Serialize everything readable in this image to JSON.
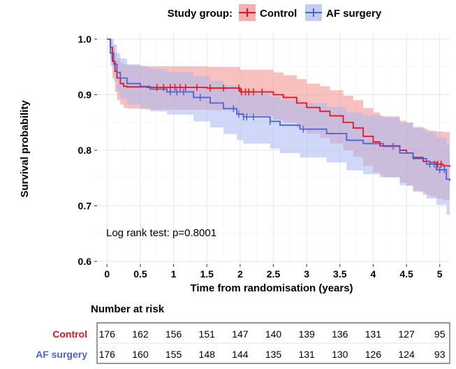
{
  "chart_data": {
    "type": "line",
    "legend": {
      "title": "Study group:",
      "position": "top",
      "entries": [
        {
          "name": "Control",
          "color": "#e8141e"
        },
        {
          "name": "AF surgery",
          "color": "#4d62d6"
        }
      ]
    },
    "xlabel": "Time from randomisation (years)",
    "ylabel": "Survival probability",
    "xlim": [
      -0.15,
      5.15
    ],
    "ylim": [
      0.595,
      1.01
    ],
    "x_ticks": [
      0,
      0.5,
      1,
      1.5,
      2,
      2.5,
      3,
      3.5,
      4,
      4.5,
      5
    ],
    "x_tick_labels": [
      "0",
      "0.5",
      "1",
      "1.5",
      "2",
      "2.5",
      "3",
      "3.5",
      "4",
      "4.5",
      "5"
    ],
    "y_ticks": [
      0.6,
      0.7,
      0.8,
      0.9,
      1.0
    ],
    "y_tick_labels": [
      "0.6",
      "0.7",
      "0.8",
      "0.9",
      "1.0"
    ],
    "grid": true,
    "annotation": "Log rank test: p=0.8001",
    "series": [
      {
        "name": "Control",
        "color": "#e8141e",
        "band_color": "#f48c8c",
        "step_x": [
          0,
          0.05,
          0.08,
          0.12,
          0.15,
          0.2,
          0.25,
          0.3,
          0.5,
          0.6,
          1.0,
          1.5,
          2.0,
          2.5,
          2.65,
          2.85,
          3.0,
          3.2,
          3.35,
          3.55,
          3.7,
          3.85,
          4.0,
          4.1,
          4.4,
          4.5,
          4.6,
          4.75,
          4.85,
          4.95,
          5.05,
          5.15
        ],
        "step_y": [
          1.0,
          0.985,
          0.96,
          0.942,
          0.93,
          0.92,
          0.915,
          0.914,
          0.914,
          0.913,
          0.913,
          0.912,
          0.905,
          0.9,
          0.895,
          0.885,
          0.877,
          0.87,
          0.862,
          0.85,
          0.84,
          0.825,
          0.815,
          0.808,
          0.8,
          0.795,
          0.787,
          0.78,
          0.778,
          0.775,
          0.772,
          0.77
        ],
        "band_upper": [
          1.0,
          1.0,
          0.99,
          0.975,
          0.965,
          0.958,
          0.955,
          0.953,
          0.952,
          0.951,
          0.951,
          0.95,
          0.945,
          0.94,
          0.935,
          0.928,
          0.92,
          0.915,
          0.908,
          0.898,
          0.89,
          0.876,
          0.868,
          0.861,
          0.853,
          0.85,
          0.842,
          0.837,
          0.835,
          0.834,
          0.833,
          0.832
        ],
        "band_lower": [
          1.0,
          0.965,
          0.93,
          0.905,
          0.89,
          0.882,
          0.876,
          0.875,
          0.874,
          0.873,
          0.873,
          0.872,
          0.862,
          0.855,
          0.85,
          0.84,
          0.83,
          0.822,
          0.812,
          0.8,
          0.788,
          0.772,
          0.76,
          0.752,
          0.742,
          0.736,
          0.727,
          0.72,
          0.717,
          0.713,
          0.71,
          0.707
        ],
        "censor_x": [
          0.75,
          0.85,
          0.95,
          1.02,
          1.1,
          1.18,
          1.35,
          1.55,
          1.75,
          1.98,
          2.02,
          2.08,
          2.13,
          2.2,
          2.33,
          4.97,
          5.02
        ]
      },
      {
        "name": "AF surgery",
        "color": "#4d62d6",
        "band_color": "#a8b8f0",
        "step_x": [
          0,
          0.05,
          0.1,
          0.15,
          0.2,
          0.3,
          0.5,
          0.65,
          0.9,
          1.3,
          1.55,
          1.75,
          1.95,
          2.05,
          2.45,
          2.6,
          2.9,
          3.3,
          3.6,
          3.85,
          4.15,
          4.4,
          4.6,
          4.8,
          4.95,
          5.1,
          5.15
        ],
        "step_y": [
          1.0,
          0.975,
          0.955,
          0.94,
          0.93,
          0.92,
          0.915,
          0.91,
          0.905,
          0.895,
          0.885,
          0.875,
          0.865,
          0.86,
          0.852,
          0.845,
          0.838,
          0.83,
          0.818,
          0.812,
          0.807,
          0.795,
          0.785,
          0.775,
          0.765,
          0.748,
          0.745
        ],
        "band_upper": [
          1.0,
          1.0,
          0.99,
          0.975,
          0.965,
          0.955,
          0.95,
          0.946,
          0.941,
          0.933,
          0.925,
          0.917,
          0.908,
          0.904,
          0.897,
          0.891,
          0.885,
          0.878,
          0.868,
          0.863,
          0.859,
          0.849,
          0.84,
          0.832,
          0.823,
          0.81,
          0.808
        ],
        "band_lower": [
          1.0,
          0.952,
          0.925,
          0.905,
          0.893,
          0.882,
          0.876,
          0.87,
          0.864,
          0.852,
          0.841,
          0.829,
          0.818,
          0.812,
          0.803,
          0.795,
          0.787,
          0.778,
          0.764,
          0.757,
          0.751,
          0.737,
          0.725,
          0.713,
          0.702,
          0.684,
          0.68
        ],
        "censor_x": [
          0.95,
          1.05,
          1.15,
          1.4,
          1.9,
          1.98,
          2.05,
          2.1,
          2.2,
          2.45,
          2.95,
          4.3,
          4.85,
          4.92,
          5.0,
          5.07
        ]
      }
    ],
    "risk_table": {
      "title": "Number at risk",
      "times": [
        0,
        0.5,
        1,
        1.5,
        2,
        2.5,
        3,
        3.5,
        4,
        4.5,
        5
      ],
      "rows": [
        {
          "label": "Control",
          "color": "#e8141e",
          "values": [
            176,
            162,
            156,
            151,
            147,
            140,
            139,
            136,
            131,
            127,
            95
          ]
        },
        {
          "label": "AF surgery",
          "color": "#4d62d6",
          "values": [
            176,
            160,
            155,
            148,
            144,
            135,
            131,
            130,
            126,
            124,
            93
          ]
        }
      ]
    }
  }
}
